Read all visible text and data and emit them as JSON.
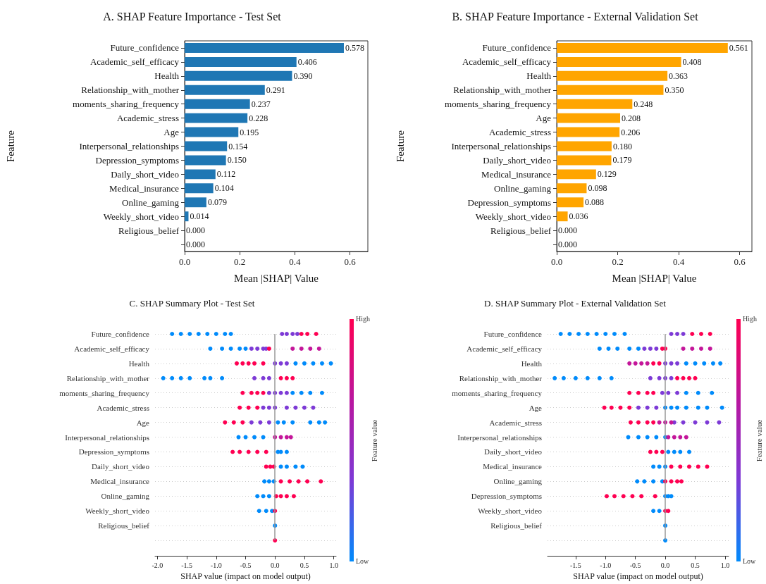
{
  "chart_data": [
    {
      "type": "bar",
      "orientation": "horizontal",
      "title": "A. SHAP Feature Importance - Test Set",
      "xlabel": "Mean |SHAP| Value",
      "ylabel": "Feature",
      "color": "#1f77b4",
      "categories": [
        "Future_confidence",
        "Academic_self_efficacy",
        "Health",
        "Relationship_with_mother",
        "moments_sharing_frequency",
        "Academic_stress",
        "Age",
        "Interpersonal_relationships",
        "Depression_symptoms",
        "Daily_short_video",
        "Medical_insurance",
        "Online_gaming",
        "Weekly_short_video",
        "Religious_belief",
        null
      ],
      "values": [
        0.578,
        0.406,
        0.39,
        0.291,
        0.237,
        0.228,
        0.195,
        0.154,
        0.15,
        0.112,
        0.104,
        0.079,
        0.014,
        0.0,
        0.0
      ],
      "value_labels": [
        "0.578",
        "0.406",
        "0.390",
        "0.291",
        "0.237",
        "0.228",
        "0.195",
        "0.154",
        "0.150",
        "0.112",
        "0.104",
        "0.079",
        "0.014",
        "0.000",
        "0.000"
      ],
      "xlim": [
        0,
        0.665
      ],
      "xticks": [
        {
          "value": 0,
          "label": "0.0"
        },
        {
          "value": 0.2,
          "label": "0.2"
        },
        {
          "value": 0.4,
          "label": "0.4"
        },
        {
          "value": 0.6,
          "label": "0.6"
        }
      ]
    },
    {
      "type": "bar",
      "orientation": "horizontal",
      "title": "B. SHAP Feature Importance - External Validation Set",
      "xlabel": "Mean |SHAP| Value",
      "ylabel": "Feature",
      "color": "#ffa500",
      "categories": [
        "Future_confidence",
        "Academic_self_efficacy",
        "Health",
        "Relationship_with_mother",
        "moments_sharing_frequency",
        "Age",
        "Academic_stress",
        "Interpersonal_relationships",
        "Daily_short_video",
        "Medical_insurance",
        "Online_gaming",
        "Depression_symptoms",
        "Weekly_short_video",
        "Religious_belief",
        null
      ],
      "values": [
        0.561,
        0.408,
        0.363,
        0.35,
        0.248,
        0.208,
        0.206,
        0.18,
        0.179,
        0.129,
        0.098,
        0.088,
        0.036,
        0.0,
        0.0
      ],
      "value_labels": [
        "0.561",
        "0.408",
        "0.363",
        "0.350",
        "0.248",
        "0.208",
        "0.206",
        "0.180",
        "0.179",
        "0.129",
        "0.098",
        "0.088",
        "0.036",
        "0.000",
        "0.000"
      ],
      "xlim": [
        0,
        0.64
      ],
      "xticks": [
        {
          "value": 0,
          "label": "0.0"
        },
        {
          "value": 0.2,
          "label": "0.2"
        },
        {
          "value": 0.4,
          "label": "0.4"
        },
        {
          "value": 0.6,
          "label": "0.6"
        }
      ]
    },
    {
      "type": "scatter",
      "orientation": "horizontal",
      "title": "C. SHAP Summary Plot - Test Set",
      "xlabel": "SHAP value (impact on model output)",
      "clabel": "Feature value",
      "annotations": [
        "High",
        "Low"
      ],
      "grid": "y",
      "categories": [
        "Future_confidence",
        "Academic_self_efficacy",
        "Health",
        "Relationship_with_mother",
        "moments_sharing_frequency",
        "Academic_stress",
        "Age",
        "Interpersonal_relationships",
        "Depression_symptoms",
        "Daily_short_video",
        "Medical_insurance",
        "Online_gaming",
        "Weekly_short_video",
        "Religious_belief",
        null
      ],
      "series": [
        {
          "color": "#008bfb",
          "x": [
            "Future_confidence",
            "Future_confidence",
            "Future_confidence",
            "Future_confidence",
            "Future_confidence",
            "Future_confidence",
            "Future_confidence",
            "Future_confidence",
            "Academic_self_efficacy",
            "Academic_self_efficacy",
            "Academic_self_efficacy",
            "Academic_self_efficacy",
            "Academic_self_efficacy",
            "Health",
            "Health",
            "Health",
            "Health",
            "Health",
            "Relationship_with_mother",
            "Relationship_with_mother",
            "Relationship_with_mother",
            "Relationship_with_mother",
            "Relationship_with_mother",
            "Relationship_with_mother",
            "Relationship_with_mother",
            "moments_sharing_frequency",
            "moments_sharing_frequency",
            "moments_sharing_frequency",
            "moments_sharing_frequency",
            "Age",
            "Age",
            "Age",
            "Age",
            "Age",
            "Age",
            "Interpersonal_relationships",
            "Interpersonal_relationships",
            "Interpersonal_relationships",
            "Interpersonal_relationships",
            "Depression_symptoms",
            "Depression_symptoms",
            "Depression_symptoms",
            "Daily_short_video",
            "Daily_short_video",
            "Daily_short_video",
            "Daily_short_video",
            "Medical_insurance",
            "Medical_insurance",
            "Medical_insurance",
            "Online_gaming",
            "Online_gaming",
            "Online_gaming",
            "Weekly_short_video",
            "Weekly_short_video",
            "Weekly_short_video",
            "Religious_belief"
          ],
          "values": [
            -1.75,
            -1.6,
            -1.45,
            -1.3,
            -1.15,
            -1.0,
            -0.85,
            -0.75,
            -1.1,
            -0.9,
            -0.75,
            -0.6,
            -0.5,
            0.35,
            0.5,
            0.65,
            0.8,
            0.95,
            -1.9,
            -1.75,
            -1.6,
            -1.45,
            -1.2,
            -1.1,
            -0.9,
            0.3,
            0.45,
            0.6,
            0.8,
            0.05,
            0.15,
            0.3,
            0.6,
            0.75,
            0.85,
            -0.62,
            -0.5,
            -0.35,
            -0.2,
            0.05,
            0.1,
            0.2,
            0.1,
            0.2,
            0.35,
            0.47,
            -0.18,
            -0.1,
            -0.02,
            -0.3,
            -0.2,
            -0.1,
            -0.27,
            -0.15,
            -0.05,
            0.0
          ]
        },
        {
          "color": "#7d3ad6",
          "x": [
            "Future_confidence",
            "Future_confidence",
            "Future_confidence",
            "Future_confidence",
            "Academic_self_efficacy",
            "Academic_self_efficacy",
            "Academic_self_efficacy",
            "Academic_self_efficacy",
            "Health",
            "Health",
            "Health",
            "Relationship_with_mother",
            "Relationship_with_mother",
            "Relationship_with_mother",
            "moments_sharing_frequency",
            "moments_sharing_frequency",
            "moments_sharing_frequency",
            "moments_sharing_frequency",
            "Academic_stress",
            "Academic_stress",
            "Academic_stress",
            "Academic_stress",
            "Academic_stress",
            "Academic_stress",
            "Academic_stress",
            "Age",
            "Age",
            "Age"
          ],
          "values": [
            0.12,
            0.2,
            0.3,
            0.38,
            -0.4,
            -0.3,
            -0.2,
            -0.15,
            0.0,
            0.1,
            0.2,
            -0.35,
            -0.2,
            -0.1,
            -0.1,
            0.0,
            0.1,
            0.2,
            -0.2,
            -0.1,
            0.0,
            0.2,
            0.35,
            0.5,
            0.65,
            -0.4,
            -0.25,
            -0.1
          ]
        },
        {
          "color": "#c4169a",
          "x": [
            "Academic_self_efficacy",
            "Academic_self_efficacy",
            "Academic_self_efficacy",
            "Academic_self_efficacy",
            "Interpersonal_relationships",
            "Interpersonal_relationships",
            "Interpersonal_relationships",
            "Interpersonal_relationships"
          ],
          "values": [
            0.3,
            0.45,
            0.6,
            0.75,
            0.0,
            0.1,
            0.2,
            0.27
          ]
        },
        {
          "color": "#ff0052",
          "x": [
            "Future_confidence",
            "Future_confidence",
            "Future_confidence",
            "Academic_self_efficacy",
            "Health",
            "Health",
            "Health",
            "Health",
            "Health",
            "Relationship_with_mother",
            "Relationship_with_mother",
            "Relationship_with_mother",
            "moments_sharing_frequency",
            "moments_sharing_frequency",
            "moments_sharing_frequency",
            "moments_sharing_frequency",
            "Academic_stress",
            "Academic_stress",
            "Academic_stress",
            "Age",
            "Age",
            "Age",
            "Depression_symptoms",
            "Depression_symptoms",
            "Depression_symptoms",
            "Depression_symptoms",
            "Depression_symptoms",
            "Daily_short_video",
            "Daily_short_video",
            "Daily_short_video",
            "Medical_insurance",
            "Medical_insurance",
            "Medical_insurance",
            "Medical_insurance",
            "Medical_insurance",
            "Online_gaming",
            "Online_gaming",
            "Online_gaming",
            "Online_gaming",
            "Weekly_short_video",
            null
          ],
          "values": [
            0.45,
            0.55,
            0.7,
            -0.1,
            -0.65,
            -0.55,
            -0.45,
            -0.35,
            -0.2,
            0.1,
            0.2,
            0.3,
            -0.55,
            -0.4,
            -0.3,
            -0.2,
            -0.6,
            -0.45,
            -0.3,
            -0.85,
            -0.7,
            -0.55,
            -0.72,
            -0.6,
            -0.45,
            -0.3,
            -0.15,
            -0.15,
            -0.08,
            -0.02,
            0.1,
            0.25,
            0.4,
            0.55,
            0.78,
            0.02,
            0.1,
            0.2,
            0.32,
            0.0,
            0.0
          ]
        }
      ],
      "ref_lines": [
        {
          "axis": "x",
          "value": 0,
          "color": "#999999"
        }
      ],
      "xlim": [
        -2.04,
        1.04
      ],
      "xticks": [
        {
          "value": -2,
          "label": "-2.0"
        },
        {
          "value": -1.5,
          "label": "-1.5"
        },
        {
          "value": -1,
          "label": "-1.0"
        },
        {
          "value": -0.5,
          "label": "-0.5"
        },
        {
          "value": 0,
          "label": "0.0"
        },
        {
          "value": 0.5,
          "label": "0.5"
        },
        {
          "value": 1,
          "label": "1.0"
        }
      ]
    },
    {
      "type": "scatter",
      "orientation": "horizontal",
      "title": "D. SHAP Summary Plot - External Validation Set",
      "xlabel": "SHAP value (impact on model output)",
      "clabel": "Feature value",
      "annotations": [
        "High",
        "Low"
      ],
      "grid": "y",
      "categories": [
        "Future_confidence",
        "Academic_self_efficacy",
        "Health",
        "Relationship_with_mother",
        "moments_sharing_frequency",
        "Age",
        "Academic_stress",
        "Interpersonal_relationships",
        "Daily_short_video",
        "Medical_insurance",
        "Online_gaming",
        "Depression_symptoms",
        "Weekly_short_video",
        "Religious_belief",
        null
      ],
      "series": [
        {
          "color": "#008bfb",
          "x": [
            "Future_confidence",
            "Future_confidence",
            "Future_confidence",
            "Future_confidence",
            "Future_confidence",
            "Future_confidence",
            "Future_confidence",
            "Future_confidence",
            "Academic_self_efficacy",
            "Academic_self_efficacy",
            "Academic_self_efficacy",
            "Academic_self_efficacy",
            "Academic_self_efficacy",
            "Health",
            "Health",
            "Health",
            "Health",
            "Health",
            "Relationship_with_mother",
            "Relationship_with_mother",
            "Relationship_with_mother",
            "Relationship_with_mother",
            "Relationship_with_mother",
            "Relationship_with_mother",
            "moments_sharing_frequency",
            "moments_sharing_frequency",
            "moments_sharing_frequency",
            "Age",
            "Age",
            "Age",
            "Age",
            "Age",
            "Age",
            "Age",
            "Interpersonal_relationships",
            "Interpersonal_relationships",
            "Interpersonal_relationships",
            "Interpersonal_relationships",
            "Interpersonal_relationships",
            "Daily_short_video",
            "Daily_short_video",
            "Daily_short_video",
            "Daily_short_video",
            "Medical_insurance",
            "Medical_insurance",
            "Medical_insurance",
            "Online_gaming",
            "Online_gaming",
            "Online_gaming",
            "Online_gaming",
            "Depression_symptoms",
            "Depression_symptoms",
            "Depression_symptoms",
            "Weekly_short_video",
            "Weekly_short_video",
            "Religious_belief",
            null
          ],
          "values": [
            -1.75,
            -1.6,
            -1.45,
            -1.3,
            -1.15,
            -1.0,
            -0.85,
            -0.68,
            -1.1,
            -0.95,
            -0.8,
            -0.6,
            -0.45,
            0.35,
            0.5,
            0.65,
            0.8,
            0.92,
            -1.85,
            -1.7,
            -1.5,
            -1.3,
            -1.1,
            -0.9,
            0.35,
            0.55,
            0.78,
            0.0,
            0.1,
            0.2,
            0.35,
            0.55,
            0.7,
            0.95,
            -0.62,
            -0.45,
            -0.3,
            -0.15,
            0.0,
            0.05,
            0.15,
            0.25,
            0.4,
            -0.2,
            -0.1,
            0.0,
            -0.47,
            -0.35,
            -0.2,
            -0.05,
            0.0,
            0.05,
            0.1,
            -0.2,
            -0.1,
            0.0,
            0.0
          ]
        },
        {
          "color": "#7d3ad6",
          "x": [
            "Future_confidence",
            "Future_confidence",
            "Future_confidence",
            "Academic_self_efficacy",
            "Academic_self_efficacy",
            "Academic_self_efficacy",
            "Health",
            "Health",
            "Health",
            "Relationship_with_mother",
            "Relationship_with_mother",
            "Relationship_with_mother",
            "Relationship_with_mother",
            "moments_sharing_frequency",
            "moments_sharing_frequency",
            "moments_sharing_frequency",
            "Age",
            "Age",
            "Age",
            "Academic_stress",
            "Academic_stress",
            "Academic_stress",
            "Academic_stress",
            "Academic_stress"
          ],
          "values": [
            0.1,
            0.2,
            0.3,
            -0.35,
            -0.25,
            -0.15,
            0.0,
            0.1,
            0.2,
            -0.25,
            -0.1,
            0.0,
            0.1,
            -0.05,
            0.05,
            0.2,
            -0.45,
            -0.3,
            -0.15,
            0.15,
            0.3,
            0.5,
            0.7,
            0.9
          ]
        },
        {
          "color": "#c4169a",
          "x": [
            "Academic_self_efficacy",
            "Academic_self_efficacy",
            "Academic_self_efficacy",
            "Academic_self_efficacy",
            "Health",
            "Health",
            "Health",
            "Health",
            "Academic_stress",
            "Academic_stress",
            "Academic_stress",
            "Interpersonal_relationships",
            "Interpersonal_relationships",
            "Interpersonal_relationships",
            "Interpersonal_relationships"
          ],
          "values": [
            0.3,
            0.45,
            0.6,
            0.75,
            -0.6,
            -0.5,
            -0.4,
            -0.3,
            -0.1,
            0.0,
            0.1,
            0.05,
            0.15,
            0.25,
            0.35
          ]
        },
        {
          "color": "#ff0052",
          "x": [
            "Future_confidence",
            "Future_confidence",
            "Future_confidence",
            "Academic_self_efficacy",
            "Academic_self_efficacy",
            "Health",
            "Health",
            "Relationship_with_mother",
            "Relationship_with_mother",
            "Relationship_with_mother",
            "Relationship_with_mother",
            "moments_sharing_frequency",
            "moments_sharing_frequency",
            "moments_sharing_frequency",
            "moments_sharing_frequency",
            "Age",
            "Age",
            "Age",
            "Age",
            "Academic_stress",
            "Academic_stress",
            "Academic_stress",
            "Academic_stress",
            "Daily_short_video",
            "Daily_short_video",
            "Daily_short_video",
            "Medical_insurance",
            "Medical_insurance",
            "Medical_insurance",
            "Medical_insurance",
            "Medical_insurance",
            "Online_gaming",
            "Online_gaming",
            "Online_gaming",
            "Online_gaming",
            "Depression_symptoms",
            "Depression_symptoms",
            "Depression_symptoms",
            "Depression_symptoms",
            "Depression_symptoms",
            "Depression_symptoms",
            "Weekly_short_video",
            "Weekly_short_video"
          ],
          "values": [
            0.45,
            0.6,
            0.75,
            -0.05,
            0.0,
            -0.2,
            -0.1,
            0.2,
            0.3,
            0.4,
            0.5,
            -0.6,
            -0.45,
            -0.3,
            -0.2,
            -1.02,
            -0.9,
            -0.75,
            -0.6,
            -0.58,
            -0.45,
            -0.3,
            -0.2,
            -0.25,
            -0.15,
            -0.05,
            0.1,
            0.25,
            0.4,
            0.55,
            0.7,
            0.0,
            0.1,
            0.2,
            0.27,
            -0.98,
            -0.85,
            -0.7,
            -0.55,
            -0.4,
            -0.17,
            0.0,
            0.05
          ]
        }
      ],
      "ref_lines": [
        {
          "axis": "x",
          "value": 0,
          "color": "#999999"
        }
      ],
      "xlim": [
        -1.97,
        1.06
      ],
      "xticks": [
        {
          "value": -1.5,
          "label": "-1.5"
        },
        {
          "value": -1,
          "label": "-1.0"
        },
        {
          "value": -0.5,
          "label": "-0.5"
        },
        {
          "value": 0,
          "label": "0.0"
        },
        {
          "value": 0.5,
          "label": "0.5"
        },
        {
          "value": 1,
          "label": "1.0"
        }
      ]
    }
  ]
}
